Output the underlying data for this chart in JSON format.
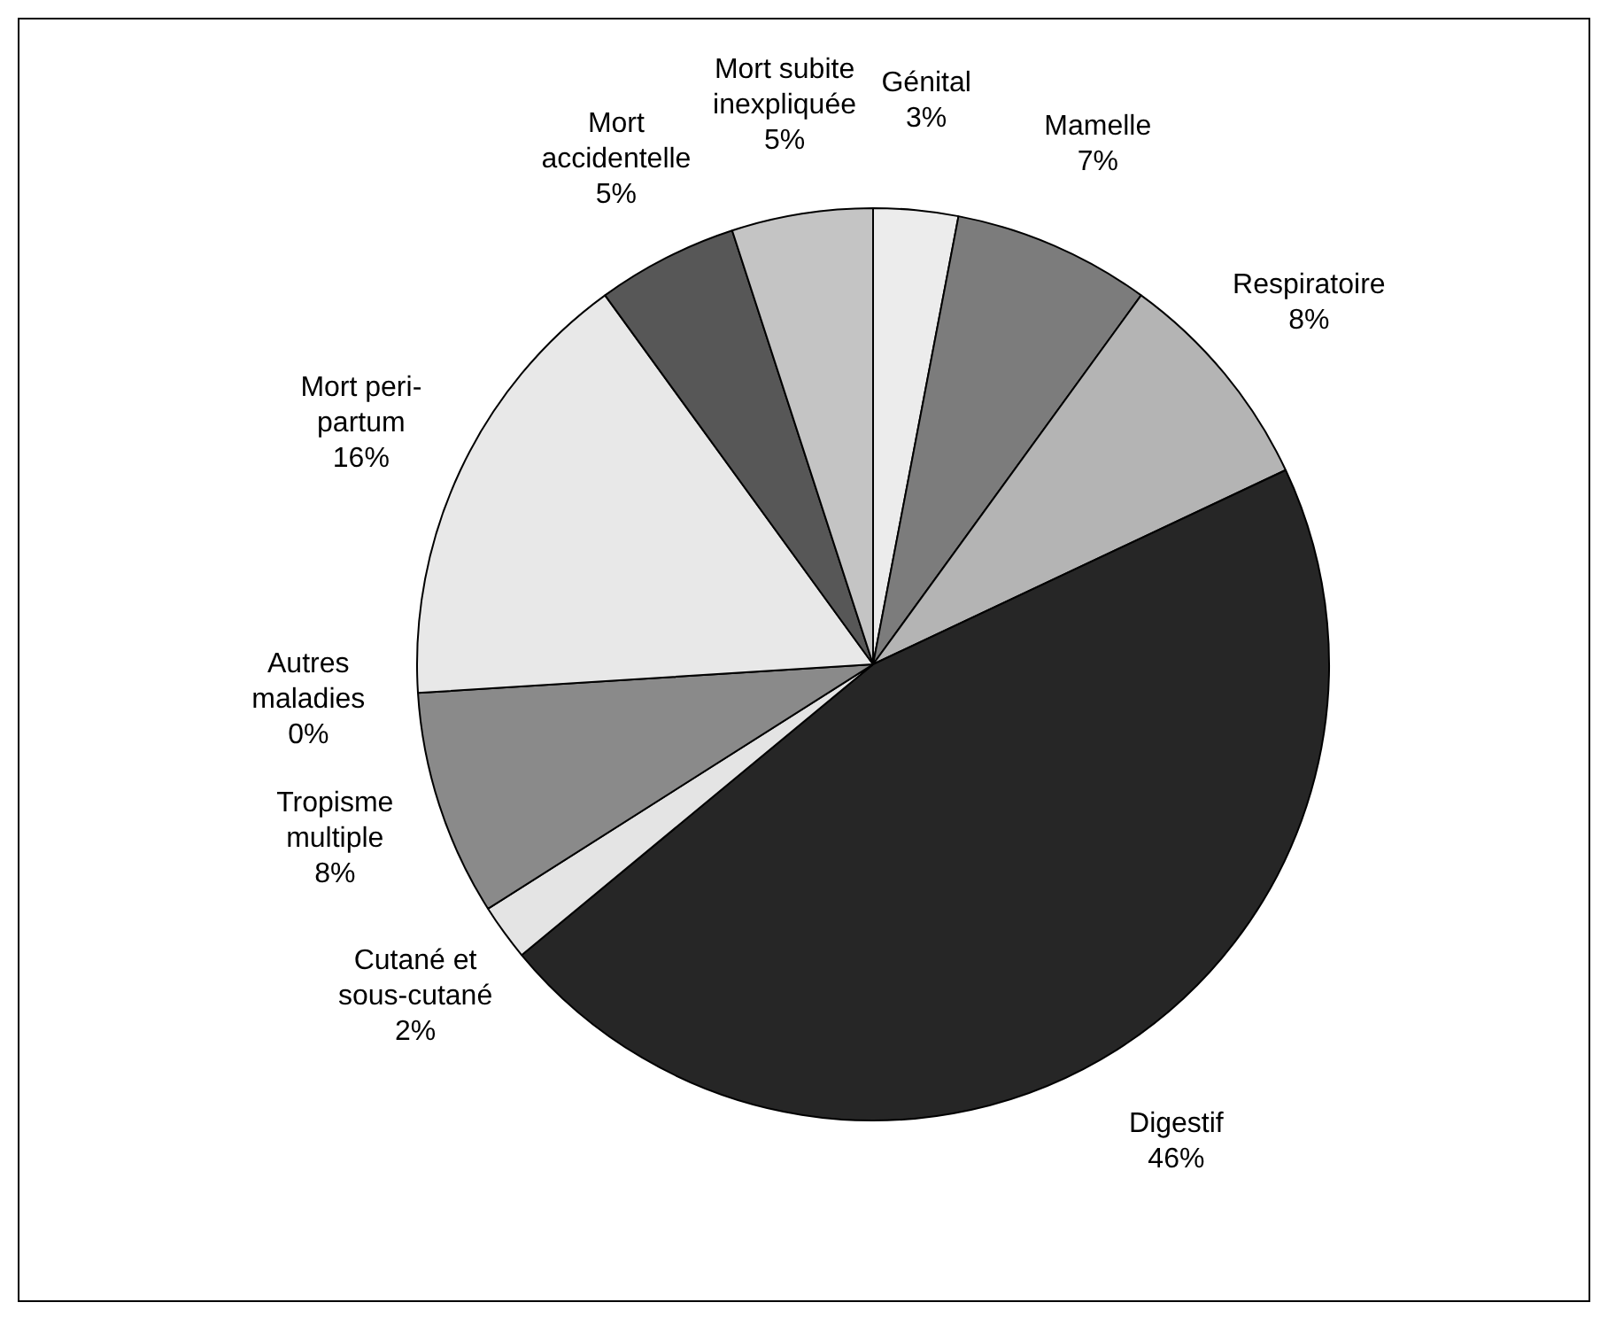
{
  "chart_data": {
    "type": "pie",
    "categories": [
      "Génital",
      "Mamelle",
      "Respiratoire",
      "Digestif",
      "Cutané et sous-cutané",
      "Tropisme multiple",
      "Autres maladies",
      "Mort peri-partum",
      "Mort accidentelle",
      "Mort subite inexpliquée"
    ],
    "values": [
      3,
      7,
      8,
      46,
      2,
      8,
      0,
      16,
      5,
      5
    ],
    "value_labels": [
      "3%",
      "7%",
      "8%",
      "46%",
      "2%",
      "8%",
      "0%",
      "16%",
      "5%",
      "5%"
    ],
    "colors": [
      "#ececec",
      "#7c7c7c",
      "#b4b4b4",
      "#262626",
      "#e4e4e4",
      "#8a8a8a",
      "#ffffff",
      "#e8e8e8",
      "#575757",
      "#c4c4c4"
    ],
    "legend": false
  }
}
